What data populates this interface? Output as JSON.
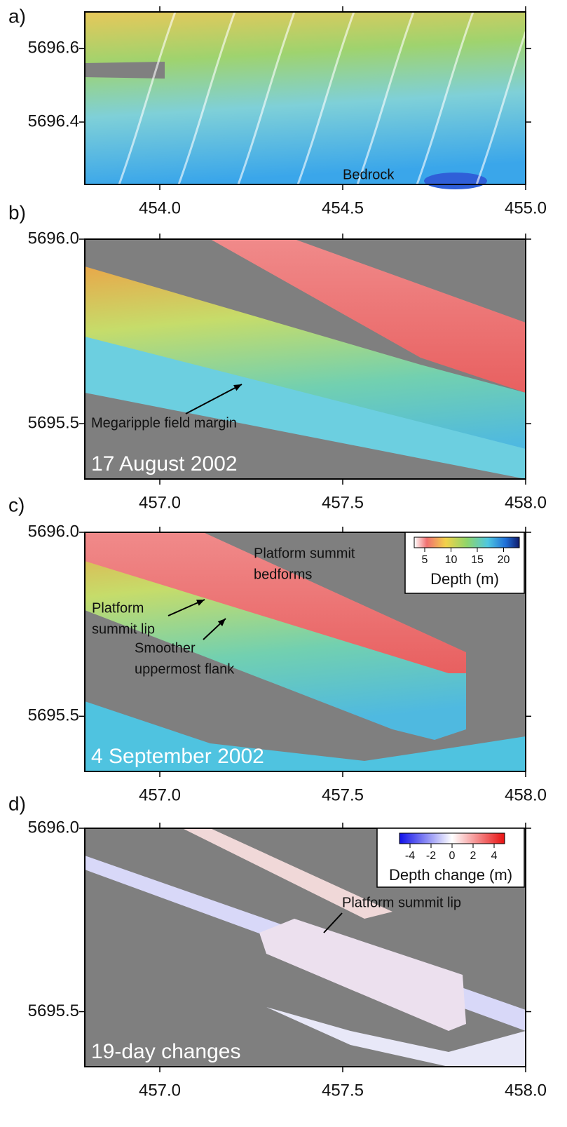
{
  "chart_data": [
    {
      "type": "map",
      "label": "a)",
      "xlim": [
        453.795,
        455.0
      ],
      "ylim": [
        5696.23,
        5696.7
      ],
      "xticks": [
        {
          "value": 454,
          "label": "454.0"
        },
        {
          "value": 454.5,
          "label": "454.5"
        },
        {
          "value": 455,
          "label": "455.0"
        }
      ],
      "yticks": [
        5696.4,
        5696.6
      ],
      "annotations": [
        {
          "lines": [
            "Bedrock"
          ]
        }
      ]
    },
    {
      "type": "map",
      "label": "b)",
      "xlim": [
        456.795,
        458.0
      ],
      "ylim": [
        5695.35,
        5696.0
      ],
      "xticks": [
        {
          "value": 457,
          "label": "457.0"
        },
        {
          "value": 457.5,
          "label": "457.5"
        },
        {
          "value": 458,
          "label": "458.0"
        }
      ],
      "yticks": [
        5695.5,
        {
          "value": 5696,
          "label": "5696.0"
        }
      ],
      "annotations": [
        {
          "lines": [
            "Megaripple field margin"
          ]
        }
      ],
      "date": "17 August 2002"
    },
    {
      "type": "map",
      "label": "c)",
      "xlim": [
        456.795,
        458.0
      ],
      "ylim": [
        5695.35,
        5696.0
      ],
      "xticks": [
        {
          "value": 457,
          "label": "457.0"
        },
        {
          "value": 457.5,
          "label": "457.5"
        },
        {
          "value": 458,
          "label": "458.0"
        }
      ],
      "yticks": [
        5695.5,
        {
          "value": 5696,
          "label": "5696.0"
        }
      ],
      "annotations": [
        {
          "lines": [
            "Platform summit",
            "bedforms"
          ]
        },
        {
          "lines": [
            "Platform",
            "summit lip"
          ]
        },
        {
          "lines": [
            "Smoother",
            "uppermost flank"
          ]
        }
      ],
      "date": "4 September 2002",
      "colorbar": {
        "title": "Depth (m)",
        "clim": [
          3,
          23
        ],
        "ticks": [
          5,
          10,
          15,
          20
        ]
      }
    },
    {
      "type": "map",
      "label": "d)",
      "xlim": [
        456.795,
        458.0
      ],
      "ylim": [
        5695.35,
        5696.0
      ],
      "xticks": [
        {
          "value": 457,
          "label": "457.0"
        },
        {
          "value": 457.5,
          "label": "457.5"
        },
        {
          "value": 458,
          "label": "458.0"
        }
      ],
      "yticks": [
        5695.5,
        {
          "value": 5696,
          "label": "5696.0"
        }
      ],
      "annotations": [
        {
          "lines": [
            "Platform summit lip"
          ]
        }
      ],
      "date": "19-day changes",
      "colorbar": {
        "title": "Depth change (m)",
        "clim": [
          -5,
          5
        ],
        "ticks": [
          -4,
          -2,
          0,
          2,
          4
        ]
      }
    }
  ]
}
